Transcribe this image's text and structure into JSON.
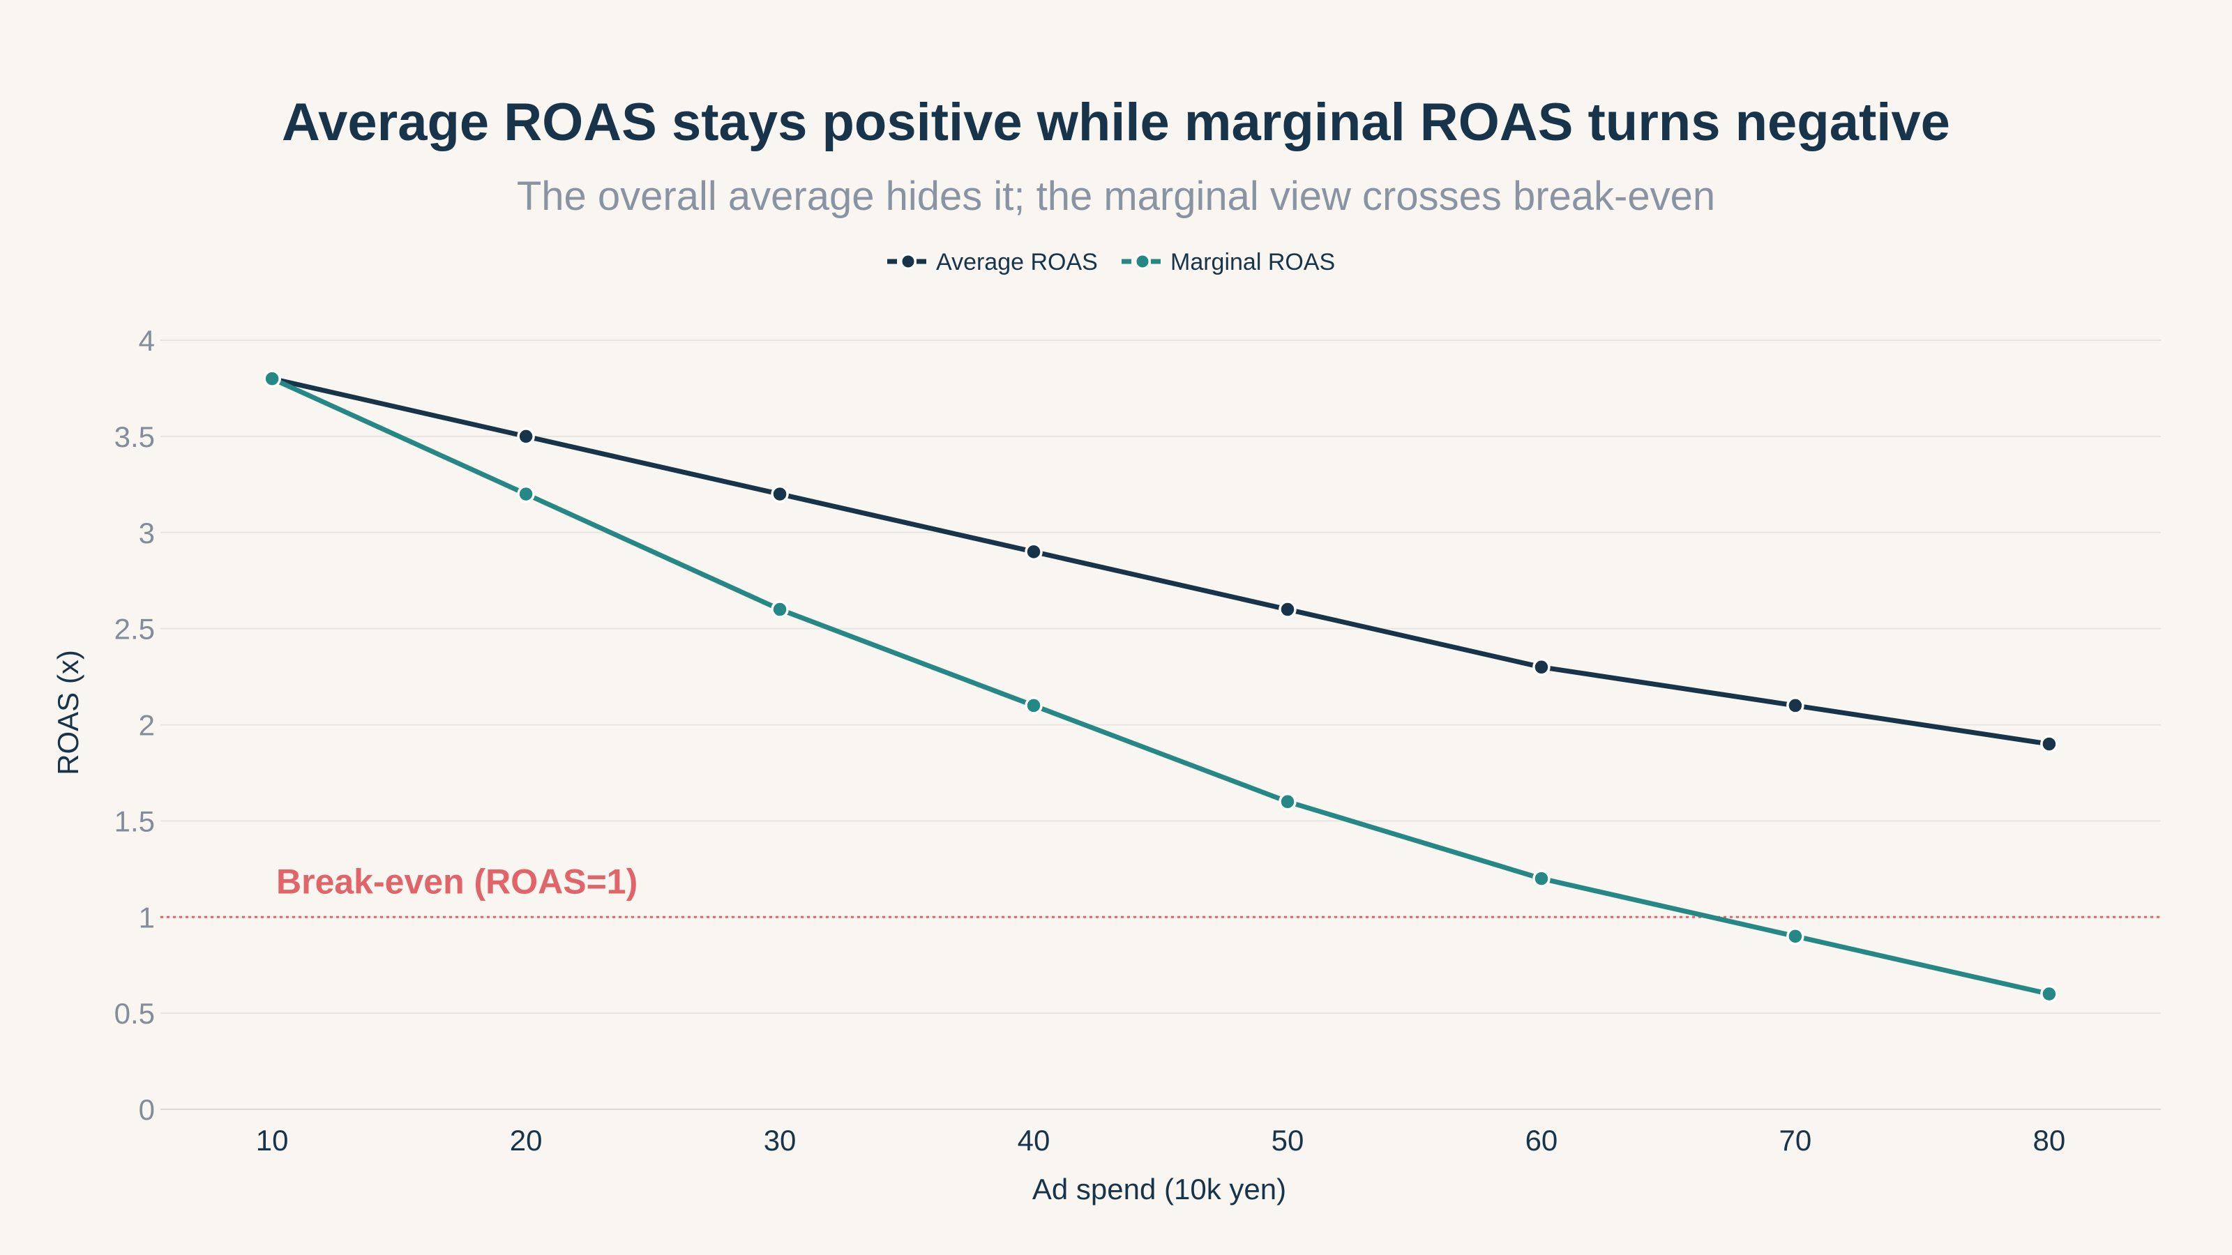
{
  "chart_data": {
    "type": "line",
    "title": "Average ROAS stays positive while marginal ROAS turns negative",
    "subtitle": "The overall average hides it; the marginal view crosses break-even",
    "xlabel": "Ad spend (10k yen)",
    "ylabel": "ROAS (x)",
    "x": [
      10,
      20,
      30,
      40,
      50,
      60,
      70,
      80
    ],
    "xticks": [
      "10",
      "20",
      "30",
      "40",
      "50",
      "60",
      "70",
      "80"
    ],
    "yticks": [
      "0",
      "0.5",
      "1",
      "1.5",
      "2",
      "2.5",
      "3",
      "3.5",
      "4"
    ],
    "ylim": [
      0,
      4
    ],
    "grid": true,
    "legend_position": "top-center",
    "series": [
      {
        "name": "Average ROAS",
        "color": "#17344a",
        "values": [
          3.8,
          3.5,
          3.2,
          2.9,
          2.6,
          2.3,
          2.1,
          1.9
        ]
      },
      {
        "name": "Marginal ROAS",
        "color": "#268886",
        "values": [
          3.8,
          3.2,
          2.6,
          2.1,
          1.6,
          1.2,
          0.9,
          0.6
        ]
      }
    ],
    "reference_line": {
      "y": 1,
      "label": "Break-even (ROAS=1)",
      "color": "#e06468",
      "style": "dotted"
    }
  }
}
